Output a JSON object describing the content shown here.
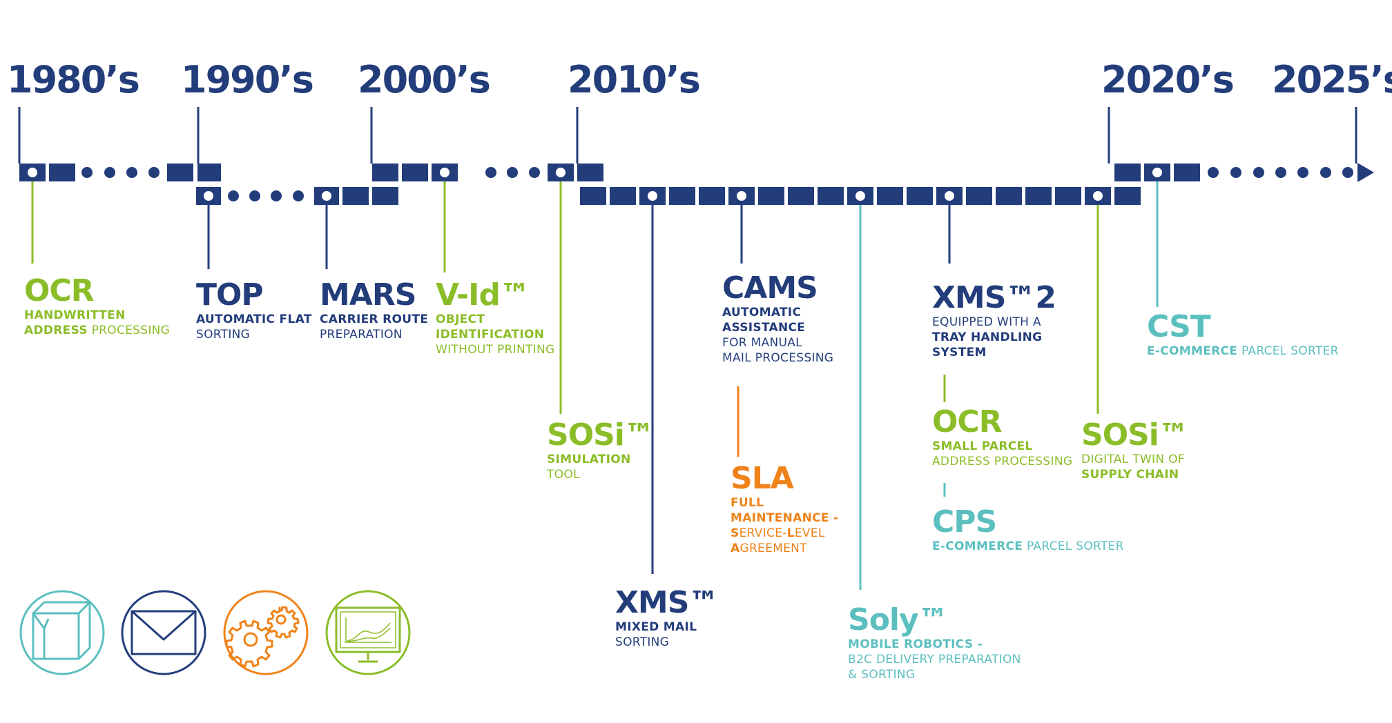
{
  "colors": {
    "navy": "#233d7b",
    "green": "#8bbd28",
    "teal": "#5cbfbf",
    "orange": "#ef8219"
  },
  "decades": [
    "1980’s",
    "1990’s",
    "2000’s",
    "2010’s",
    "2020’s",
    "2025’s"
  ],
  "milestones": [
    {
      "id": "ocr-1980",
      "color": "green",
      "title": "OCR",
      "lines": [
        [
          {
            "t": "HANDWRITTEN",
            "b": true
          }
        ],
        [
          {
            "t": "ADDRESS",
            "b": true
          },
          {
            "t": " PROCESSING",
            "b": false
          }
        ]
      ]
    },
    {
      "id": "top",
      "color": "navy",
      "title": "TOP",
      "lines": [
        [
          {
            "t": "AUTOMATIC FLAT",
            "b": true
          }
        ],
        [
          {
            "t": "SORTING",
            "b": false
          }
        ]
      ]
    },
    {
      "id": "mars",
      "color": "navy",
      "title": "MARS",
      "lines": [
        [
          {
            "t": "CARRIER ROUTE",
            "b": true
          }
        ],
        [
          {
            "t": "PREPARATION",
            "b": false
          }
        ]
      ]
    },
    {
      "id": "v-id",
      "color": "green",
      "title": "V-Id™",
      "lines": [
        [
          {
            "t": "OBJECT",
            "b": true
          }
        ],
        [
          {
            "t": "IDENTIFICATION",
            "b": true
          }
        ],
        [
          {
            "t": "WITHOUT PRINTING",
            "b": false
          }
        ]
      ]
    },
    {
      "id": "sosi-sim",
      "color": "green",
      "title": "SOSi™",
      "lines": [
        [
          {
            "t": "SIMULATION",
            "b": true
          }
        ],
        [
          {
            "t": "TOOL",
            "b": false
          }
        ]
      ]
    },
    {
      "id": "xms",
      "color": "navy",
      "title": "XMS™",
      "lines": [
        [
          {
            "t": "MIXED MAIL",
            "b": true
          }
        ],
        [
          {
            "t": "SORTING",
            "b": false
          }
        ]
      ]
    },
    {
      "id": "cams",
      "color": "navy",
      "title": "CAMS",
      "lines": [
        [
          {
            "t": "AUTOMATIC",
            "b": true
          }
        ],
        [
          {
            "t": "ASSISTANCE",
            "b": true
          }
        ],
        [
          {
            "t": "FOR MANUAL",
            "b": false
          }
        ],
        [
          {
            "t": "MAIL PROCESSING",
            "b": false
          }
        ]
      ]
    },
    {
      "id": "sla",
      "color": "orange",
      "title": "SLA",
      "lines": [
        [
          {
            "t": "FULL",
            "b": true
          }
        ],
        [
          {
            "t": "MAINTENANCE -",
            "b": true
          }
        ],
        [
          {
            "t": "S",
            "b": true
          },
          {
            "t": "ERVICE-",
            "b": false
          },
          {
            "t": "L",
            "b": true
          },
          {
            "t": "EVEL",
            "b": false
          }
        ],
        [
          {
            "t": "A",
            "b": true
          },
          {
            "t": "GREEMENT",
            "b": false
          }
        ]
      ]
    },
    {
      "id": "soly",
      "color": "teal",
      "title": "Soly™",
      "lines": [
        [
          {
            "t": "MOBILE ROBOTICS -",
            "b": true
          }
        ],
        [
          {
            "t": "B2C DELIVERY PREPARATION",
            "b": false
          }
        ],
        [
          {
            "t": "& SORTING",
            "b": false
          }
        ]
      ]
    },
    {
      "id": "xms2",
      "color": "navy",
      "title": "XMS™2",
      "lines": [
        [
          {
            "t": "EQUIPPED WITH A",
            "b": false
          }
        ],
        [
          {
            "t": "TRAY HANDLING",
            "b": true
          }
        ],
        [
          {
            "t": "SYSTEM",
            "b": true
          }
        ]
      ]
    },
    {
      "id": "ocr-parcel",
      "color": "green",
      "title": "OCR",
      "lines": [
        [
          {
            "t": "SMALL PARCEL",
            "b": true
          }
        ],
        [
          {
            "t": "ADDRESS PROCESSING",
            "b": false
          }
        ]
      ]
    },
    {
      "id": "cps",
      "color": "teal",
      "title": "CPS",
      "lines": [
        [
          {
            "t": "E-COMMERCE",
            "b": true
          },
          {
            "t": " PARCEL SORTER",
            "b": false
          }
        ]
      ]
    },
    {
      "id": "sosi-twin",
      "color": "green",
      "title": "SOSi™",
      "lines": [
        [
          {
            "t": "DIGITAL TWIN OF",
            "b": false
          }
        ],
        [
          {
            "t": "SUPPLY CHAIN",
            "b": true
          }
        ]
      ]
    },
    {
      "id": "cst",
      "color": "teal",
      "title": "CST",
      "lines": [
        [
          {
            "t": "E-COMMERCE",
            "b": true
          },
          {
            "t": " PARCEL SORTER",
            "b": false
          }
        ]
      ]
    }
  ],
  "icons": [
    {
      "name": "parcel-box-icon",
      "color": "teal"
    },
    {
      "name": "envelope-icon",
      "color": "navy"
    },
    {
      "name": "gears-icon",
      "color": "orange"
    },
    {
      "name": "monitor-chart-icon",
      "color": "green"
    }
  ]
}
